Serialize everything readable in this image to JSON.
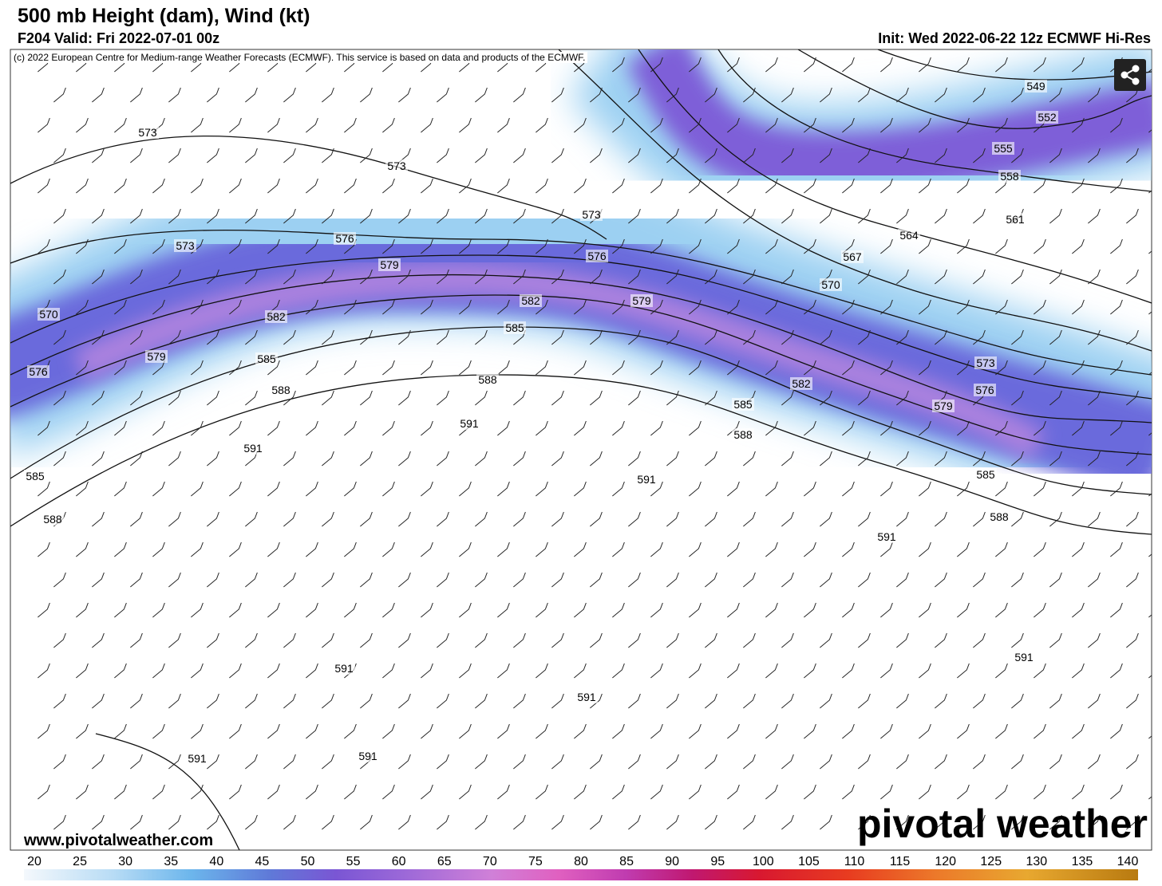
{
  "header": {
    "title": "500 mb Height (dam), Wind (kt)",
    "valid": "F204 Valid: Fri 2022-07-01 00z",
    "init": "Init: Wed 2022-06-22 12z ECMWF Hi-Res"
  },
  "map": {
    "copyright": "(c) 2022 European Centre for Medium-range Weather Forecasts (ECMWF). This service is based on data and products of the ECMWF.",
    "contour_labels": [
      573,
      573,
      573,
      573,
      570,
      576,
      576,
      576,
      579,
      579,
      579,
      579,
      582,
      582,
      582,
      585,
      585,
      585,
      585,
      585,
      588,
      588,
      588,
      588,
      588,
      591,
      591,
      591,
      591,
      591,
      591,
      591,
      591,
      591,
      549,
      552,
      555,
      558,
      561,
      564,
      567,
      570,
      573,
      576
    ]
  },
  "footer": {
    "url": "www.pivotalweather.com",
    "brand": "pivotal weather"
  },
  "colorbar": {
    "ticks": [
      20,
      25,
      30,
      35,
      40,
      45,
      50,
      55,
      60,
      65,
      70,
      75,
      80,
      85,
      90,
      95,
      100,
      105,
      110,
      115,
      120,
      125,
      130,
      135,
      140
    ]
  }
}
